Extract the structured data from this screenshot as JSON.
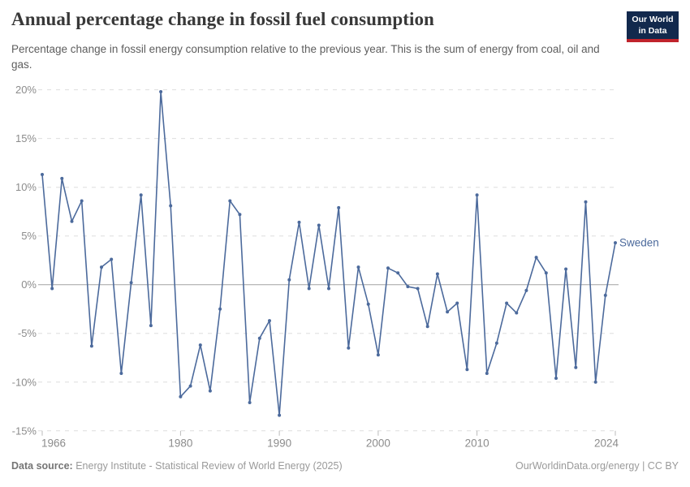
{
  "header": {
    "title": "Annual percentage change in fossil fuel consumption",
    "subtitle": "Percentage change in fossil energy consumption relative to the previous year. This is the sum of energy from coal, oil and gas.",
    "logo": {
      "line1": "Our World",
      "line2": "in Data",
      "bg_color": "#12294d",
      "bar_color": "#c0232c"
    }
  },
  "chart_data": {
    "type": "line",
    "title": "Annual percentage change in fossil fuel consumption",
    "x": [
      1966,
      1967,
      1968,
      1969,
      1970,
      1971,
      1972,
      1973,
      1974,
      1975,
      1976,
      1977,
      1978,
      1979,
      1980,
      1981,
      1982,
      1983,
      1984,
      1985,
      1986,
      1987,
      1988,
      1989,
      1990,
      1991,
      1992,
      1993,
      1994,
      1995,
      1996,
      1997,
      1998,
      1999,
      2000,
      2001,
      2002,
      2003,
      2004,
      2005,
      2006,
      2007,
      2008,
      2009,
      2010,
      2011,
      2012,
      2013,
      2014,
      2015,
      2016,
      2017,
      2018,
      2019,
      2020,
      2021,
      2022,
      2023,
      2024
    ],
    "series": [
      {
        "name": "Sweden",
        "values": [
          11.3,
          -0.4,
          10.9,
          6.5,
          8.6,
          -6.3,
          1.8,
          2.6,
          -9.1,
          0.2,
          9.2,
          -4.2,
          19.8,
          8.1,
          -11.5,
          -10.4,
          -6.2,
          -10.9,
          -2.5,
          8.6,
          7.2,
          -12.1,
          -5.5,
          -3.7,
          -13.4,
          0.5,
          6.4,
          -0.4,
          6.1,
          -0.4,
          7.9,
          -6.5,
          1.8,
          -2,
          -7.2,
          1.7,
          1.2,
          -0.2,
          -0.4,
          -4.3,
          1.1,
          -2.8,
          -1.9,
          -8.7,
          9.2,
          -9.1,
          -6,
          -1.9,
          -2.9,
          -0.6,
          2.8,
          1.2,
          -9.6,
          1.6,
          -8.5,
          8.5,
          -10,
          -1.1,
          4.3
        ]
      }
    ],
    "xlim": [
      1966,
      2024
    ],
    "ylim": [
      -15,
      20
    ],
    "yticks": [
      {
        "v": 20,
        "label": "20%"
      },
      {
        "v": 15,
        "label": "15%"
      },
      {
        "v": 10,
        "label": "10%"
      },
      {
        "v": 5,
        "label": "5%"
      },
      {
        "v": 0,
        "label": "0%"
      },
      {
        "v": -5,
        "label": "-5%"
      },
      {
        "v": -10,
        "label": "-10%"
      },
      {
        "v": -15,
        "label": "-15%"
      }
    ],
    "xticks": [
      {
        "v": 1966,
        "label": "1966"
      },
      {
        "v": 1980,
        "label": "1980"
      },
      {
        "v": 1990,
        "label": "1990"
      },
      {
        "v": 2000,
        "label": "2000"
      },
      {
        "v": 2010,
        "label": "2010"
      },
      {
        "v": 2024,
        "label": "2024"
      }
    ],
    "grid": "horizontal-dashed",
    "legend_position": "end-of-line",
    "colors": {
      "line": "#4c6a9c",
      "grid": "#dedede",
      "zero_line": "#a3a3a3",
      "axis_text": "#8c8c8c",
      "tick": "#bbbbbb"
    }
  },
  "footer": {
    "datasource_label": "Data source:",
    "datasource_text": "Energy Institute - Statistical Review of World Energy (2025)",
    "attribution": "OurWorldinData.org/energy | CC BY"
  }
}
